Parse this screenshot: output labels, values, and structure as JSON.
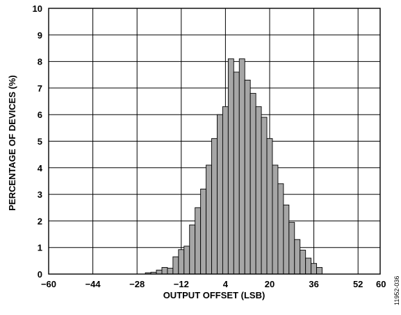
{
  "chart_data": {
    "type": "bar",
    "xlabel": "OUTPUT OFFSET (LSB)",
    "ylabel": "PERCENTAGE OF DEVICES (%)",
    "figure_id": "11952-036",
    "xlim": [
      -60,
      60
    ],
    "ylim": [
      0,
      10
    ],
    "x_ticks": [
      "−60",
      "−44",
      "−28",
      "−12",
      "4",
      "20",
      "36",
      "52",
      "60"
    ],
    "x_tick_values": [
      -60,
      -44,
      -28,
      -12,
      4,
      20,
      36,
      52,
      60
    ],
    "y_ticks": [
      "0",
      "1",
      "2",
      "3",
      "4",
      "5",
      "6",
      "7",
      "8",
      "9",
      "10"
    ],
    "grid": true,
    "bin_width": 2,
    "bin_centers": [
      -24,
      -22,
      -20,
      -18,
      -16,
      -14,
      -12,
      -10,
      -8,
      -6,
      -4,
      -2,
      0,
      2,
      4,
      6,
      8,
      10,
      12,
      14,
      16,
      18,
      20,
      22,
      24,
      26,
      28,
      30,
      32,
      34,
      36,
      38
    ],
    "values": [
      0.05,
      0.07,
      0.15,
      0.25,
      0.22,
      0.65,
      0.92,
      1.05,
      1.85,
      2.5,
      3.2,
      4.1,
      5.1,
      6.0,
      6.3,
      8.1,
      7.6,
      8.1,
      7.3,
      6.8,
      6.3,
      5.9,
      5.1,
      4.1,
      3.4,
      2.6,
      1.95,
      1.3,
      0.9,
      0.6,
      0.4,
      0.25
    ]
  }
}
